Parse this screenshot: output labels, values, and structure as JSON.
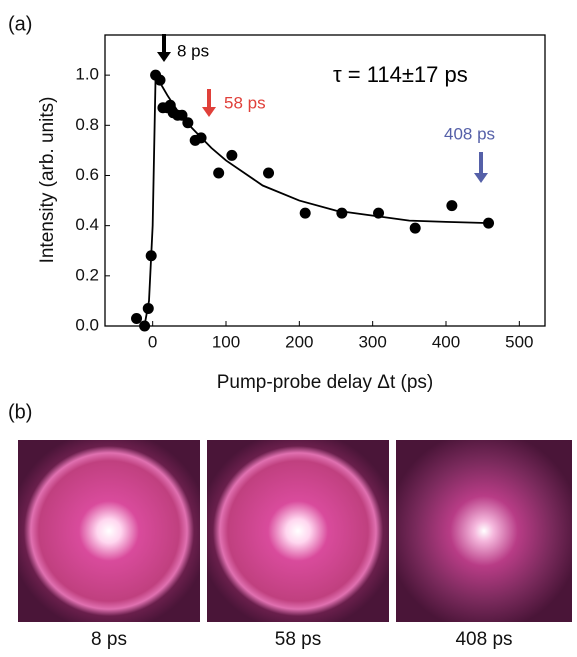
{
  "panel_labels": [
    "(a)",
    "(b)"
  ],
  "chart_data": {
    "type": "scatter",
    "xlabel": "Pump-probe delay Δt (ps)",
    "ylabel": "Intensity (arb. units)",
    "xlim": [
      -65,
      535
    ],
    "ylim": [
      0,
      1.16
    ],
    "xticks": [
      0,
      100,
      200,
      300,
      400,
      500
    ],
    "yticks": [
      {
        "value": 0,
        "label": "0.0"
      },
      0.2,
      0.4,
      0.6,
      0.8,
      {
        "value": 1,
        "label": "1.0"
      }
    ],
    "series": [
      {
        "type": "scatter",
        "color": "#000000",
        "x": [
          -22,
          -11,
          -6,
          -2,
          4,
          10,
          14,
          20,
          24,
          28,
          34,
          40,
          48,
          58,
          66,
          90,
          108,
          158,
          208,
          258,
          308,
          358,
          408,
          458
        ],
        "values": [
          0.03,
          0.0,
          0.07,
          0.28,
          1.0,
          0.98,
          0.87,
          0.87,
          0.88,
          0.85,
          0.84,
          0.84,
          0.81,
          0.74,
          0.75,
          0.61,
          0.68,
          0.61,
          0.45,
          0.45,
          0.45,
          0.39,
          0.48,
          0.41
        ]
      },
      {
        "type": "line",
        "color": "#000000",
        "x": [
          -15,
          -10,
          -5,
          0,
          4,
          20,
          40,
          60,
          80,
          100,
          150,
          200,
          250,
          300,
          350,
          400,
          460
        ],
        "values": [
          0.0,
          0.02,
          0.1,
          0.4,
          1.0,
          0.92,
          0.83,
          0.77,
          0.71,
          0.66,
          0.56,
          0.5,
          0.46,
          0.44,
          0.42,
          0.415,
          0.41
        ]
      }
    ],
    "annotations": [
      {
        "text": "8 ps",
        "color": "#000000"
      },
      {
        "text": "58 ps",
        "color": "#e0403a"
      },
      {
        "text": "408 ps",
        "color": "#5560a8"
      },
      {
        "text": "τ = 114±17 ps",
        "color": "#000000"
      }
    ]
  },
  "images": {
    "captions": [
      "8 ps",
      "58 ps",
      "408 ps"
    ]
  }
}
